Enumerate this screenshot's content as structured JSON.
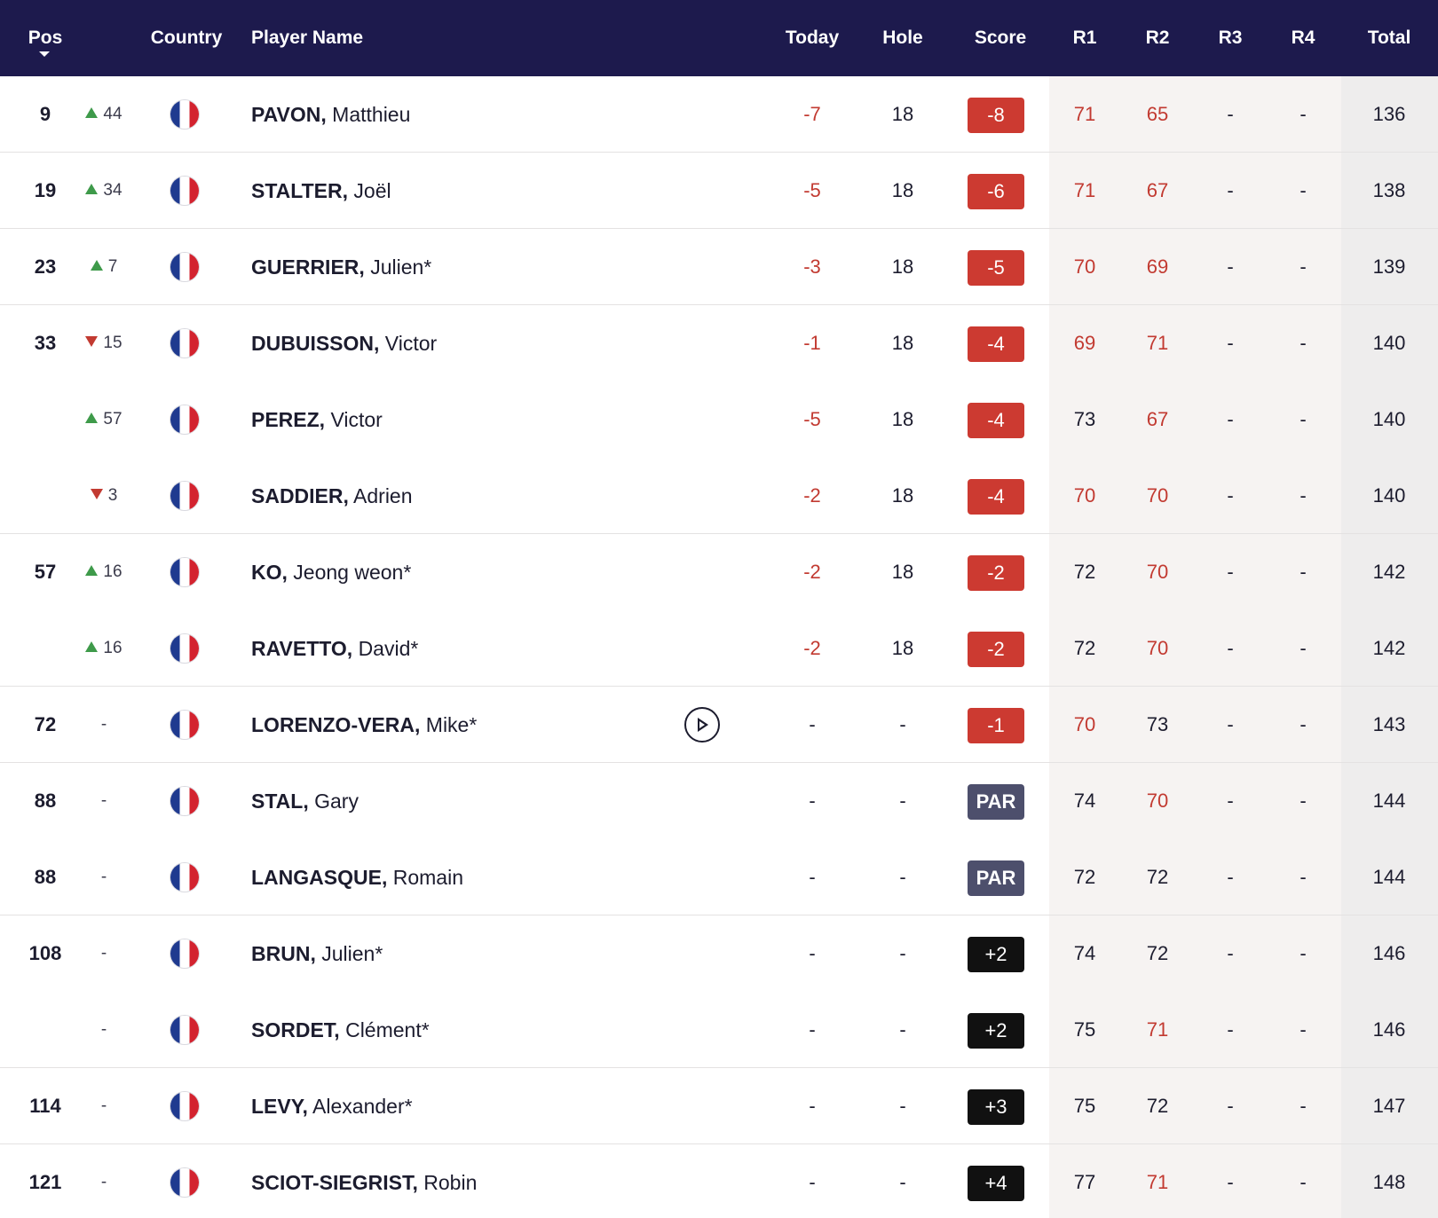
{
  "header": {
    "pos": "Pos",
    "country": "Country",
    "player": "Player Name",
    "today": "Today",
    "hole": "Hole",
    "score": "Score",
    "r1": "R1",
    "r2": "R2",
    "r3": "R3",
    "r4": "R4",
    "total": "Total"
  },
  "colors": {
    "header_bg": "#1d1a4d",
    "under_par": "#cc3a31",
    "par": "#4d4f6c",
    "over_par": "#111111",
    "movement_up": "#3e9a4a",
    "movement_down": "#c23a31"
  },
  "rows": [
    {
      "pos": "9",
      "dir": "up",
      "move": "44",
      "last": "PAVON,",
      "first": "Matthieu",
      "today": "-7",
      "hole": "18",
      "score": "-8",
      "score_type": "under",
      "r1": "71",
      "r1_red": true,
      "r2": "65",
      "r2_red": true,
      "r3": "-",
      "r4": "-",
      "total": "136",
      "sep": true,
      "play": false
    },
    {
      "pos": "19",
      "dir": "up",
      "move": "34",
      "last": "STALTER,",
      "first": "Joël",
      "today": "-5",
      "hole": "18",
      "score": "-6",
      "score_type": "under",
      "r1": "71",
      "r1_red": true,
      "r2": "67",
      "r2_red": true,
      "r3": "-",
      "r4": "-",
      "total": "138",
      "sep": true,
      "play": false
    },
    {
      "pos": "23",
      "dir": "up",
      "move": "7",
      "last": "GUERRIER,",
      "first": "Julien*",
      "today": "-3",
      "hole": "18",
      "score": "-5",
      "score_type": "under",
      "r1": "70",
      "r1_red": true,
      "r2": "69",
      "r2_red": true,
      "r3": "-",
      "r4": "-",
      "total": "139",
      "sep": true,
      "play": false
    },
    {
      "pos": "33",
      "dir": "down",
      "move": "15",
      "last": "DUBUISSON,",
      "first": "Victor",
      "today": "-1",
      "hole": "18",
      "score": "-4",
      "score_type": "under",
      "r1": "69",
      "r1_red": true,
      "r2": "71",
      "r2_red": true,
      "r3": "-",
      "r4": "-",
      "total": "140",
      "sep": false,
      "play": false
    },
    {
      "pos": "",
      "dir": "up",
      "move": "57",
      "last": "PEREZ,",
      "first": "Victor",
      "today": "-5",
      "hole": "18",
      "score": "-4",
      "score_type": "under",
      "r1": "73",
      "r1_red": false,
      "r2": "67",
      "r2_red": true,
      "r3": "-",
      "r4": "-",
      "total": "140",
      "sep": false,
      "play": false
    },
    {
      "pos": "",
      "dir": "down",
      "move": "3",
      "last": "SADDIER,",
      "first": "Adrien",
      "today": "-2",
      "hole": "18",
      "score": "-4",
      "score_type": "under",
      "r1": "70",
      "r1_red": true,
      "r2": "70",
      "r2_red": true,
      "r3": "-",
      "r4": "-",
      "total": "140",
      "sep": true,
      "play": false
    },
    {
      "pos": "57",
      "dir": "up",
      "move": "16",
      "last": "KO,",
      "first": "Jeong weon*",
      "today": "-2",
      "hole": "18",
      "score": "-2",
      "score_type": "under",
      "r1": "72",
      "r1_red": false,
      "r2": "70",
      "r2_red": true,
      "r3": "-",
      "r4": "-",
      "total": "142",
      "sep": false,
      "play": false
    },
    {
      "pos": "",
      "dir": "up",
      "move": "16",
      "last": "RAVETTO,",
      "first": "David*",
      "today": "-2",
      "hole": "18",
      "score": "-2",
      "score_type": "under",
      "r1": "72",
      "r1_red": false,
      "r2": "70",
      "r2_red": true,
      "r3": "-",
      "r4": "-",
      "total": "142",
      "sep": true,
      "play": false
    },
    {
      "pos": "72",
      "dir": "none",
      "move": "-",
      "last": "LORENZO-VERA,",
      "first": "Mike*",
      "today": "-",
      "hole": "-",
      "score": "-1",
      "score_type": "under",
      "r1": "70",
      "r1_red": true,
      "r2": "73",
      "r2_red": false,
      "r3": "-",
      "r4": "-",
      "total": "143",
      "sep": true,
      "play": true
    },
    {
      "pos": "88",
      "dir": "none",
      "move": "-",
      "last": "STAL,",
      "first": "Gary",
      "today": "-",
      "hole": "-",
      "score": "PAR",
      "score_type": "par",
      "r1": "74",
      "r1_red": false,
      "r2": "70",
      "r2_red": true,
      "r3": "-",
      "r4": "-",
      "total": "144",
      "sep": false,
      "play": false
    },
    {
      "pos": "88",
      "dir": "none",
      "move": "-",
      "last": "LANGASQUE,",
      "first": "Romain",
      "today": "-",
      "hole": "-",
      "score": "PAR",
      "score_type": "par",
      "r1": "72",
      "r1_red": false,
      "r2": "72",
      "r2_red": false,
      "r3": "-",
      "r4": "-",
      "total": "144",
      "sep": true,
      "play": false
    },
    {
      "pos": "108",
      "dir": "none",
      "move": "-",
      "last": "BRUN,",
      "first": "Julien*",
      "today": "-",
      "hole": "-",
      "score": "+2",
      "score_type": "over",
      "r1": "74",
      "r1_red": false,
      "r2": "72",
      "r2_red": false,
      "r3": "-",
      "r4": "-",
      "total": "146",
      "sep": false,
      "play": false
    },
    {
      "pos": "",
      "dir": "none",
      "move": "-",
      "last": "SORDET,",
      "first": "Clément*",
      "today": "-",
      "hole": "-",
      "score": "+2",
      "score_type": "over",
      "r1": "75",
      "r1_red": false,
      "r2": "71",
      "r2_red": true,
      "r3": "-",
      "r4": "-",
      "total": "146",
      "sep": true,
      "play": false
    },
    {
      "pos": "114",
      "dir": "none",
      "move": "-",
      "last": "LEVY,",
      "first": "Alexander*",
      "today": "-",
      "hole": "-",
      "score": "+3",
      "score_type": "over",
      "r1": "75",
      "r1_red": false,
      "r2": "72",
      "r2_red": false,
      "r3": "-",
      "r4": "-",
      "total": "147",
      "sep": true,
      "play": false
    },
    {
      "pos": "121",
      "dir": "none",
      "move": "-",
      "last": "SCIOT-SIEGRIST,",
      "first": "Robin",
      "today": "-",
      "hole": "-",
      "score": "+4",
      "score_type": "over",
      "r1": "77",
      "r1_red": false,
      "r2": "71",
      "r2_red": true,
      "r3": "-",
      "r4": "-",
      "total": "148",
      "sep": false,
      "play": false
    }
  ]
}
